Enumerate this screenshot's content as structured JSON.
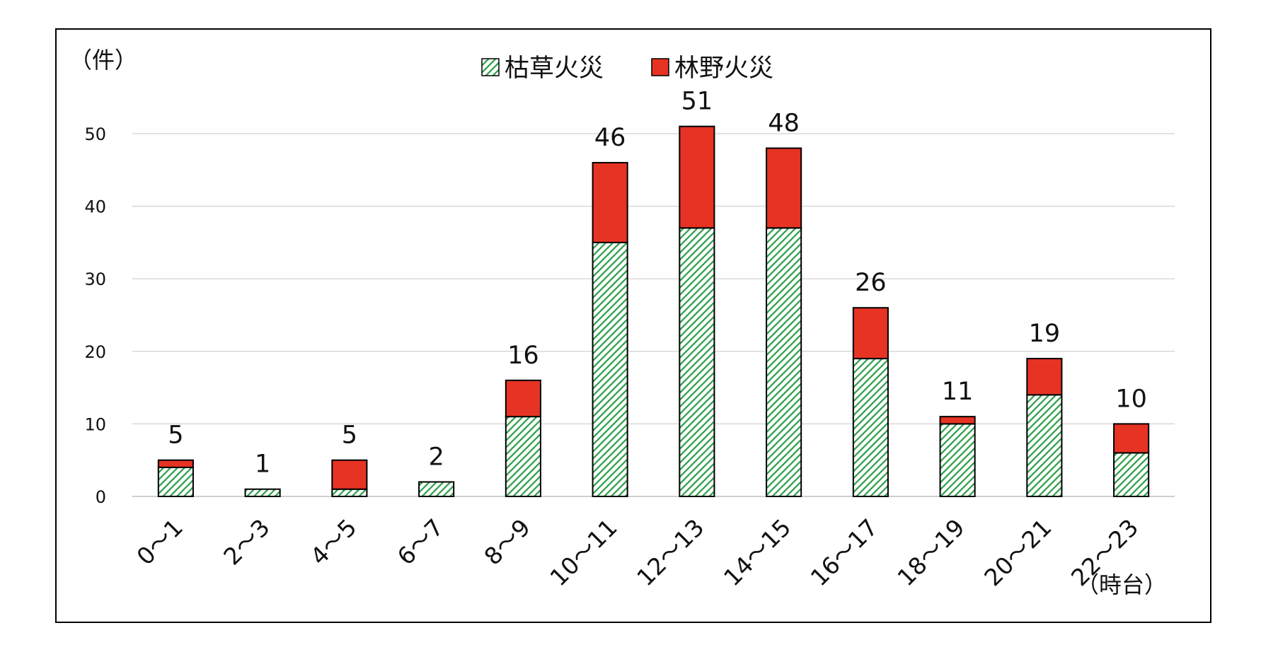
{
  "chart_data": {
    "type": "bar",
    "stacked": true,
    "y_unit_label": "（件）",
    "x_unit_label": "（時台）",
    "categories": [
      "0～1",
      "2～3",
      "4～5",
      "6～7",
      "8～9",
      "10～11",
      "12～13",
      "14～15",
      "16～17",
      "18～19",
      "20～21",
      "22～23"
    ],
    "series": [
      {
        "name": "枯草火災",
        "color": "#2e9e4a",
        "pattern": "diagonal-hatch",
        "values": [
          4,
          1,
          1,
          2,
          11,
          35,
          37,
          37,
          19,
          10,
          14,
          6
        ]
      },
      {
        "name": "林野火災",
        "color": "#e63323",
        "values": [
          1,
          0,
          4,
          0,
          5,
          11,
          14,
          11,
          7,
          1,
          5,
          4
        ]
      }
    ],
    "totals": [
      "5",
      "1",
      "5",
      "2",
      "16",
      "46",
      "51",
      "48",
      "26",
      "11",
      "19",
      "10"
    ],
    "y_ticks": [
      "0",
      "10",
      "20",
      "30",
      "40",
      "50"
    ],
    "ylim": [
      0,
      50
    ],
    "grid": true,
    "legend_position": "top-center"
  }
}
